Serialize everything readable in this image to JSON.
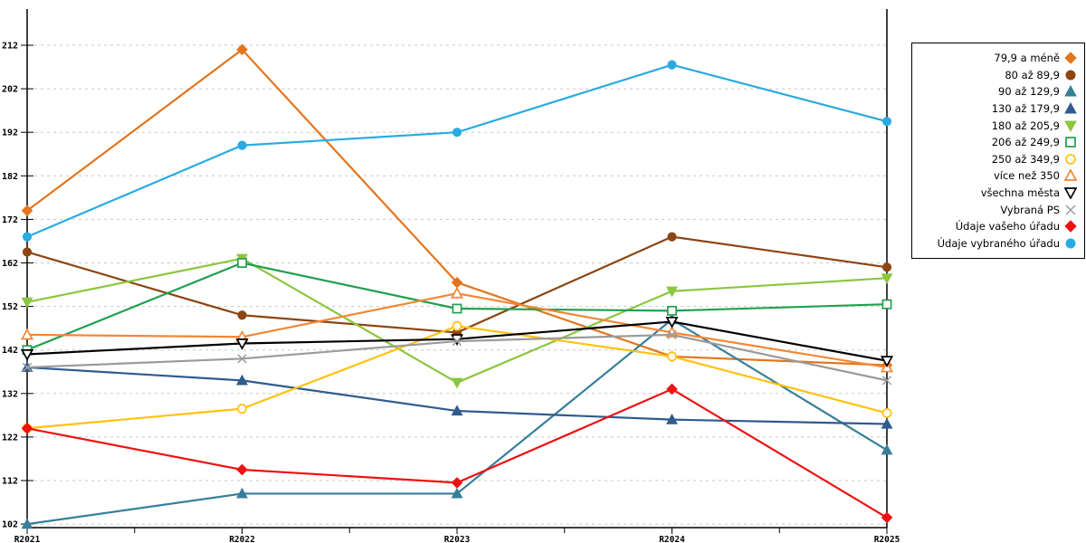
{
  "chart_data": {
    "type": "line",
    "title": "",
    "xlabel": "",
    "ylabel": "",
    "x_categories": [
      "R2021",
      "R2022",
      "R2023",
      "R2024",
      "R2025"
    ],
    "ylim": [
      102,
      212
    ],
    "y_ticks": [
      102,
      112,
      122,
      132,
      142,
      152,
      162,
      172,
      182,
      192,
      202,
      212
    ],
    "grid": "horizontal-dashed",
    "legend_position": "right",
    "series": [
      {
        "name": "79,9 a méně",
        "color": "#E2751D",
        "marker": "diamond",
        "fill": "solid",
        "values": [
          174,
          211,
          157.5,
          140.5,
          138.5
        ]
      },
      {
        "name": "80 až 89,9",
        "color": "#8C4513",
        "marker": "circle",
        "fill": "solid",
        "values": [
          164.5,
          150,
          146,
          168,
          161
        ]
      },
      {
        "name": "90 až 129,9",
        "color": "#377F99",
        "marker": "triangle-up",
        "fill": "solid",
        "values": [
          102,
          109,
          109,
          149,
          119
        ]
      },
      {
        "name": "130 až 179,9",
        "color": "#2F5B8F",
        "marker": "triangle-up",
        "fill": "solid",
        "values": [
          138,
          135,
          128,
          126,
          125
        ]
      },
      {
        "name": "180 až 205,9",
        "color": "#8CC63F",
        "marker": "triangle-down",
        "fill": "solid",
        "values": [
          153,
          163,
          134.5,
          155.5,
          158.5
        ]
      },
      {
        "name": "206 až 249,9",
        "color": "#22A050",
        "marker": "square",
        "fill": "open",
        "values": [
          142,
          162,
          151.5,
          151,
          152.5
        ]
      },
      {
        "name": "250 až 349,9",
        "color": "#FFC20E",
        "marker": "circle",
        "fill": "open",
        "values": [
          124,
          128.5,
          147.5,
          140.5,
          127.5
        ]
      },
      {
        "name": "více než 350",
        "color": "#F58634",
        "marker": "triangle-up",
        "fill": "open",
        "values": [
          145.5,
          145,
          155,
          146,
          138
        ]
      },
      {
        "name": "všechna města",
        "color": "#000000",
        "marker": "triangle-down",
        "fill": "open",
        "values": [
          141,
          143.5,
          144.5,
          148.5,
          139.5
        ]
      },
      {
        "name": "Vybraná PS",
        "color": "#9B9B9B",
        "marker": "x",
        "fill": "open",
        "values": [
          138,
          140,
          144,
          145.5,
          135
        ]
      },
      {
        "name": "Údaje vašeho úřadu",
        "color": "#EE1111",
        "marker": "diamond",
        "fill": "solid",
        "values": [
          124,
          114.5,
          111.5,
          133,
          103.5
        ]
      },
      {
        "name": "Údaje vybraného úřadu",
        "color": "#29ABE2",
        "marker": "circle",
        "fill": "solid",
        "values": [
          168,
          189,
          192,
          207.5,
          194.5
        ]
      }
    ],
    "colors": {
      "axis": "#000000",
      "grid": "#c8c8c8",
      "background": "#ffffff"
    }
  }
}
